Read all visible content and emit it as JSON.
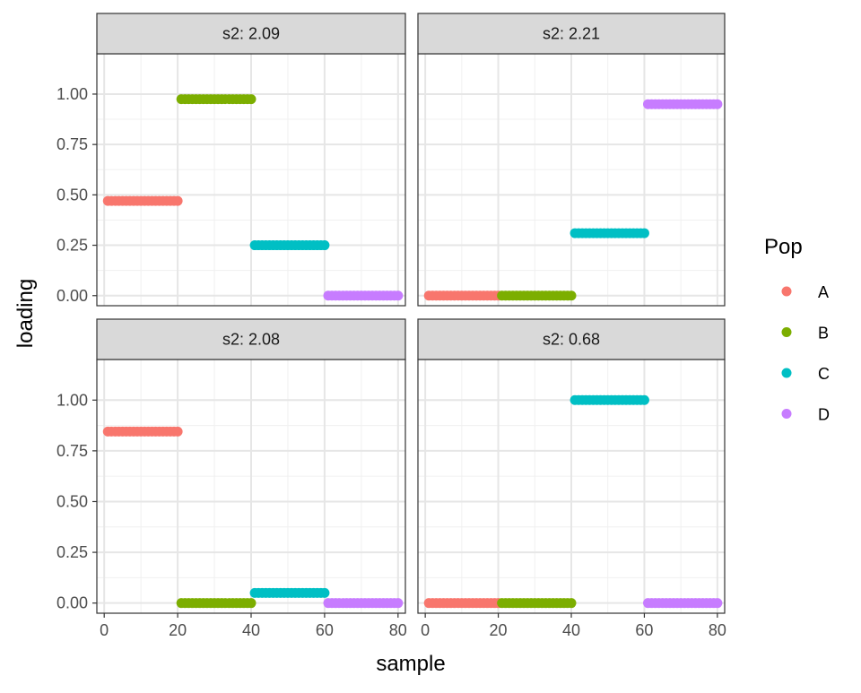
{
  "chart_data": {
    "type": "scatter",
    "xlabel": "sample",
    "ylabel": "loading",
    "xlim": [
      -2,
      82
    ],
    "ylim": [
      -0.05,
      1.2
    ],
    "x_ticks": [
      0,
      20,
      40,
      60,
      80
    ],
    "y_ticks": [
      0.0,
      0.25,
      0.5,
      0.75,
      1.0
    ],
    "x_tick_labels": [
      "0",
      "20",
      "40",
      "60",
      "80"
    ],
    "y_tick_labels": [
      "0.00",
      "0.25",
      "0.50",
      "0.75",
      "1.00"
    ],
    "grid": true,
    "legend": {
      "title": "Pop",
      "placement": "right",
      "entries": [
        {
          "label": "A",
          "color": "#F8766D"
        },
        {
          "label": "B",
          "color": "#7CAE00"
        },
        {
          "label": "C",
          "color": "#00BFC4"
        },
        {
          "label": "D",
          "color": "#C77CFF"
        }
      ]
    },
    "panels": [
      {
        "strip": "s2: 2.09",
        "values": {
          "A": 0.47,
          "B": 0.975,
          "C": 0.25,
          "D": 0.0
        }
      },
      {
        "strip": "s2: 2.21",
        "values": {
          "A": 0.0,
          "B": 0.0,
          "C": 0.31,
          "D": 0.95
        }
      },
      {
        "strip": "s2: 2.08",
        "values": {
          "A": 0.845,
          "B": 0.0,
          "C": 0.05,
          "D": 0.0
        }
      },
      {
        "strip": "s2: 0.68",
        "values": {
          "A": 0.0,
          "B": 0.0,
          "C": 1.0,
          "D": 0.0
        }
      }
    ],
    "pop_ranges": {
      "A": [
        1,
        20
      ],
      "B": [
        21,
        40
      ],
      "C": [
        41,
        60
      ],
      "D": [
        61,
        80
      ]
    }
  }
}
